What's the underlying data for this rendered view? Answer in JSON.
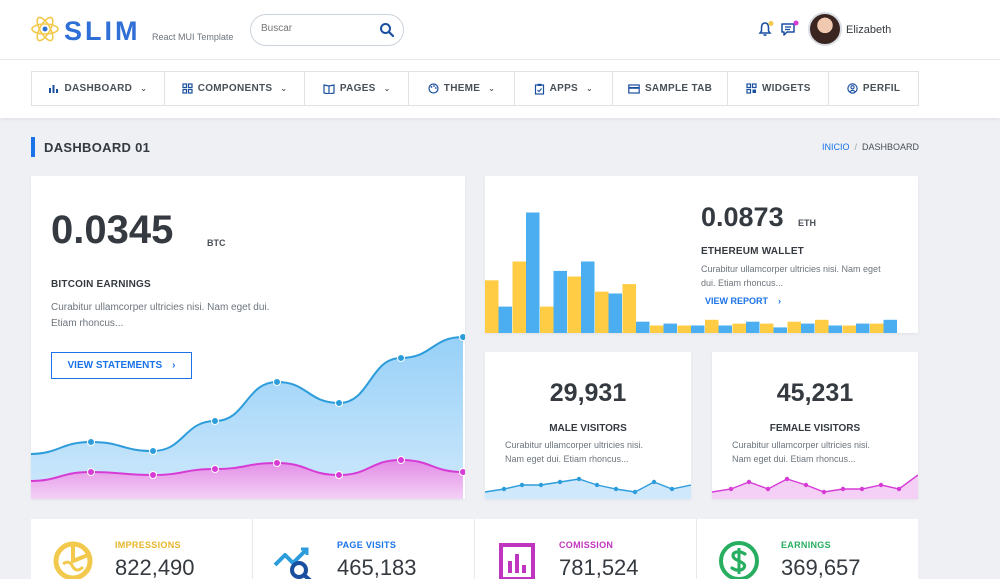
{
  "brand": {
    "name": "SLIM",
    "tagline": "React MUI Template"
  },
  "search": {
    "placeholder": "Buscar"
  },
  "user": {
    "name": "Elizabeth"
  },
  "nav": [
    {
      "label": "DASHBOARD",
      "icon": "bar-chart-icon",
      "dropdown": true
    },
    {
      "label": "COMPONENTS",
      "icon": "grid-icon",
      "dropdown": true
    },
    {
      "label": "PAGES",
      "icon": "book-icon",
      "dropdown": true
    },
    {
      "label": "THEME",
      "icon": "palette-icon",
      "dropdown": true
    },
    {
      "label": "APPS",
      "icon": "clipboard-icon",
      "dropdown": true
    },
    {
      "label": "SAMPLE TAB",
      "icon": "card-icon",
      "dropdown": false
    },
    {
      "label": "WIDGETS",
      "icon": "widgets-icon",
      "dropdown": false
    },
    {
      "label": "PERFIL",
      "icon": "user-circle-icon",
      "dropdown": false
    }
  ],
  "page": {
    "title": "DASHBOARD 01"
  },
  "breadcrumb": {
    "home": "INICIO",
    "current": "DASHBOARD"
  },
  "bitcoin": {
    "value": "0.0345",
    "unit": "BTC",
    "label": "BITCOIN EARNINGS",
    "desc_line1": "Curabitur ullamcorper ultricies nisi. Nam eget dui.",
    "desc_line2": "Etiam rhoncus...",
    "button": "VIEW STATEMENTS"
  },
  "ethereum": {
    "value": "0.0873",
    "unit": "ETH",
    "label": "ETHEREUM WALLET",
    "desc_line1": "Curabitur ullamcorper ultricies nisi. Nam eget",
    "desc_line2": "dui. Etiam rhoncus...",
    "button": "VIEW REPORT"
  },
  "male": {
    "value": "29,931",
    "label": "MALE VISITORS",
    "desc_line1": "Curabitur ullamcorper ultricies nisi.",
    "desc_line2": "Nam eget dui. Etiam rhoncus..."
  },
  "female": {
    "value": "45,231",
    "label": "FEMALE VISITORS",
    "desc_line1": "Curabitur ullamcorper ultricies nisi.",
    "desc_line2": "Nam eget dui. Etiam rhoncus..."
  },
  "stats": [
    {
      "label": "IMPRESSIONS",
      "value": "822,490",
      "color": "#f2c94c",
      "icon": "pie-chart-icon"
    },
    {
      "label": "PAGE VISITS",
      "value": "465,183",
      "color": "#2d9cdb",
      "icon": "trend-search-icon"
    },
    {
      "label": "COMISSION",
      "value": "781,524",
      "color": "#c035c0",
      "icon": "bar-report-icon"
    },
    {
      "label": "EARNINGS",
      "value": "369,657",
      "color": "#27ae60",
      "icon": "dollar-icon"
    }
  ],
  "colors": {
    "primary": "#1a73e8",
    "blue": "#4aaef0",
    "yellow": "#ffcc44",
    "pink": "#d63bd6"
  },
  "chart_data": [
    {
      "type": "area",
      "name": "bitcoin-earnings",
      "series": [
        {
          "name": "blue",
          "values": [
            30,
            38,
            32,
            52,
            78,
            64,
            94,
            108
          ]
        },
        {
          "name": "pink",
          "values": [
            12,
            18,
            16,
            20,
            24,
            16,
            26,
            18
          ]
        }
      ],
      "ylim": [
        0,
        140
      ]
    },
    {
      "type": "bar",
      "name": "ethereum-wallet",
      "series": [
        {
          "name": "yellow",
          "values": [
            28,
            38,
            14,
            30,
            22,
            26,
            4,
            4,
            7,
            5,
            5,
            6,
            7,
            4,
            5
          ]
        },
        {
          "name": "blue",
          "values": [
            14,
            64,
            33,
            38,
            21,
            6,
            5,
            4,
            4,
            6,
            3,
            5,
            4,
            5,
            7
          ]
        }
      ],
      "ylim": [
        0,
        68
      ]
    },
    {
      "type": "line",
      "name": "male-visitors",
      "values": [
        2,
        3,
        4,
        4,
        5,
        6,
        4,
        3,
        2,
        5,
        3,
        4
      ],
      "ylim": [
        0,
        10
      ]
    },
    {
      "type": "line",
      "name": "female-visitors",
      "values": [
        2,
        3,
        5,
        3,
        6,
        4,
        2,
        3,
        3,
        4,
        3,
        7
      ],
      "ylim": [
        0,
        10
      ]
    }
  ]
}
